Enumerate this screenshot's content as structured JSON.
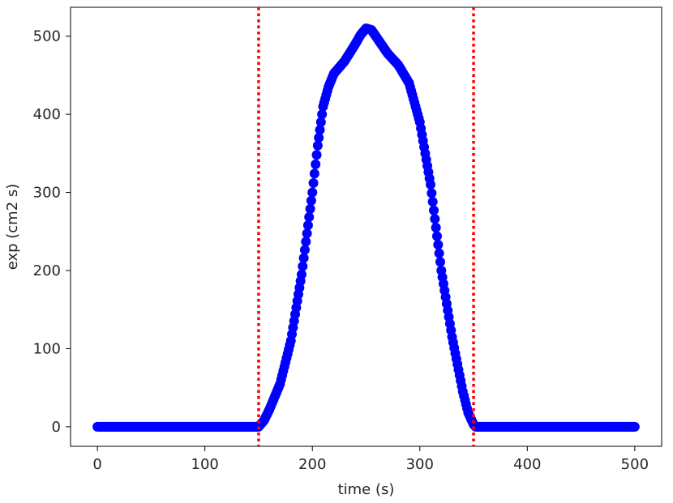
{
  "chart_data": {
    "type": "scatter",
    "xlabel": "time (s)",
    "ylabel": "exp (cm2 s)",
    "xlim": [
      -25,
      525
    ],
    "ylim": [
      -25,
      537
    ],
    "x_ticks": [
      0,
      100,
      200,
      300,
      400,
      500
    ],
    "y_ticks": [
      0,
      100,
      200,
      300,
      400,
      500
    ],
    "x_tick_labels": [
      "0",
      "100",
      "200",
      "300",
      "400",
      "500"
    ],
    "y_tick_labels": [
      "0",
      "100",
      "200",
      "300",
      "400",
      "500"
    ],
    "grid": false,
    "legend": "none",
    "marker_color": "#0000ff",
    "vlines": [
      {
        "x": 150,
        "color": "#ff0000",
        "style": "dotted"
      },
      {
        "x": 350,
        "color": "#ff0000",
        "style": "dotted"
      }
    ],
    "x_range": [
      0,
      500
    ],
    "x_step": 1,
    "profile": [
      [
        0,
        0
      ],
      [
        150,
        0
      ],
      [
        155,
        8
      ],
      [
        160,
        22
      ],
      [
        170,
        55
      ],
      [
        180,
        110
      ],
      [
        190,
        195
      ],
      [
        200,
        300
      ],
      [
        205,
        360
      ],
      [
        210,
        410
      ],
      [
        215,
        435
      ],
      [
        220,
        452
      ],
      [
        230,
        468
      ],
      [
        240,
        490
      ],
      [
        245,
        502
      ],
      [
        250,
        510
      ],
      [
        255,
        508
      ],
      [
        260,
        498
      ],
      [
        270,
        478
      ],
      [
        280,
        463
      ],
      [
        290,
        440
      ],
      [
        300,
        390
      ],
      [
        310,
        310
      ],
      [
        320,
        200
      ],
      [
        330,
        115
      ],
      [
        340,
        45
      ],
      [
        345,
        18
      ],
      [
        350,
        3
      ],
      [
        352,
        0
      ],
      [
        500,
        0
      ]
    ]
  }
}
